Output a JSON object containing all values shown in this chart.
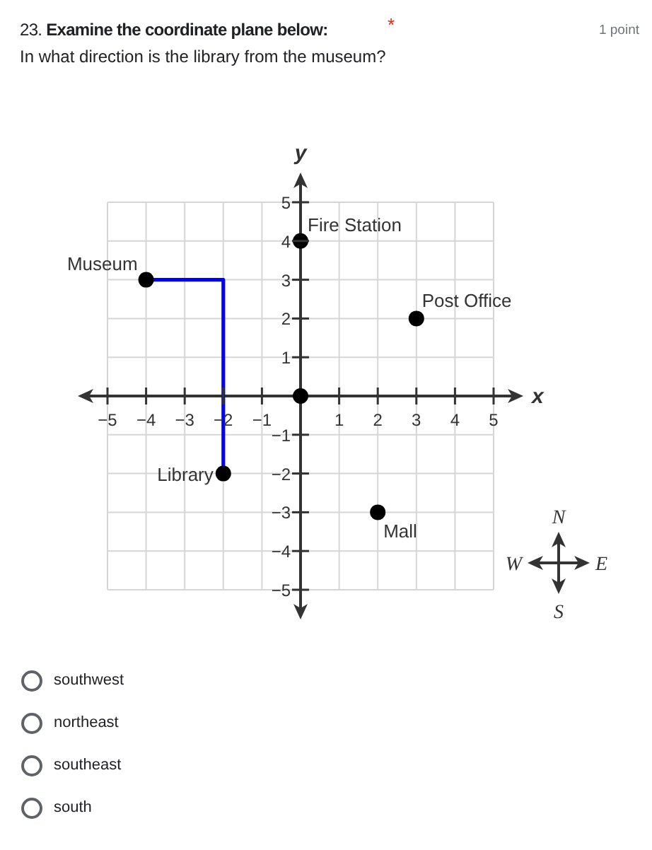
{
  "chart_data": {
    "type": "scatter",
    "title": "23. Examine the coordinate plane below:",
    "subtitle": "In what direction is the library from the museum?",
    "xlabel": "x",
    "ylabel": "y",
    "xlim": [
      -5,
      5
    ],
    "ylim": [
      -5,
      5
    ],
    "xticks": [
      -5,
      -4,
      -3,
      -2,
      -1,
      1,
      2,
      3,
      4,
      5
    ],
    "yticks": [
      -5,
      -4,
      -3,
      -2,
      -1,
      1,
      2,
      3,
      4,
      5
    ],
    "grid": true,
    "marker": "circle",
    "series": [
      {
        "type": "line",
        "color": "#0000ff",
        "marker": "none",
        "x": [
          -4,
          -2,
          -2
        ],
        "values": [
          3,
          3,
          -2
        ]
      },
      {
        "name": "Museum",
        "color": "#000000",
        "x": [
          -4
        ],
        "values": [
          3
        ]
      },
      {
        "name": "Fire Station",
        "color": "#000000",
        "x": [
          0
        ],
        "values": [
          4
        ]
      },
      {
        "name": "Post Office",
        "color": "#000000",
        "x": [
          3
        ],
        "values": [
          2
        ]
      },
      {
        "name": "Library",
        "color": "#000000",
        "x": [
          -2
        ],
        "values": [
          -2
        ]
      },
      {
        "name": "Mall",
        "color": "#000000",
        "x": [
          2
        ],
        "values": [
          -3
        ]
      },
      {
        "color": "#000000",
        "x": [
          0
        ],
        "values": [
          0
        ]
      }
    ],
    "annotations": [
      "*",
      "1 point",
      "southwest",
      "northeast",
      "southeast",
      "south",
      "N",
      "W",
      "E",
      "S"
    ]
  }
}
